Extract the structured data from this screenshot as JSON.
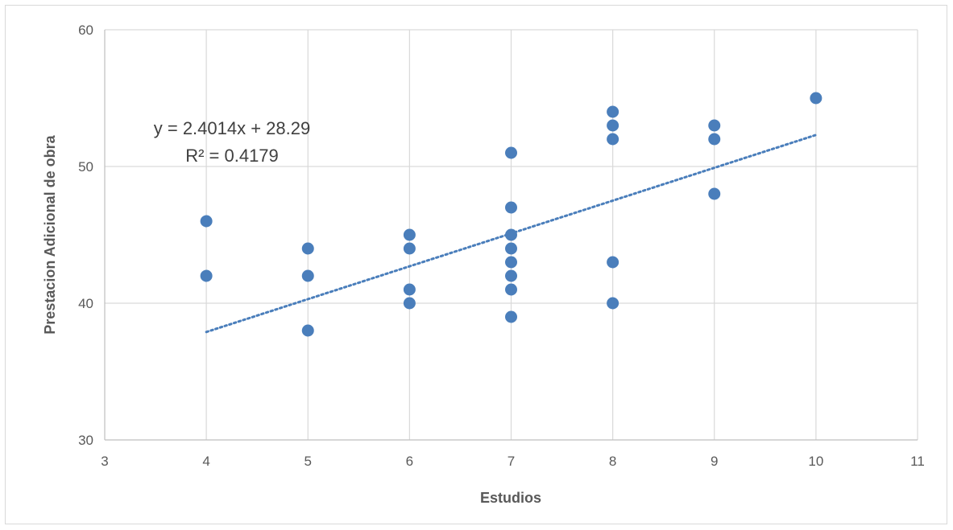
{
  "chart_data": {
    "type": "scatter",
    "xlabel": "Estudios",
    "ylabel": "Prestacion Adicional de obra",
    "xlim": [
      3,
      11
    ],
    "ylim": [
      30,
      60
    ],
    "x_ticks": [
      3,
      4,
      5,
      6,
      7,
      8,
      9,
      10,
      11
    ],
    "y_ticks": [
      30,
      40,
      50,
      60
    ],
    "grid": true,
    "points": [
      {
        "x": 4,
        "y": 46
      },
      {
        "x": 4,
        "y": 42
      },
      {
        "x": 5,
        "y": 44
      },
      {
        "x": 5,
        "y": 42
      },
      {
        "x": 5,
        "y": 38
      },
      {
        "x": 6,
        "y": 45
      },
      {
        "x": 6,
        "y": 44
      },
      {
        "x": 6,
        "y": 41
      },
      {
        "x": 6,
        "y": 40
      },
      {
        "x": 7,
        "y": 51
      },
      {
        "x": 7,
        "y": 47
      },
      {
        "x": 7,
        "y": 45
      },
      {
        "x": 7,
        "y": 44
      },
      {
        "x": 7,
        "y": 43
      },
      {
        "x": 7,
        "y": 42
      },
      {
        "x": 7,
        "y": 41
      },
      {
        "x": 7,
        "y": 39
      },
      {
        "x": 8,
        "y": 54
      },
      {
        "x": 8,
        "y": 53
      },
      {
        "x": 8,
        "y": 52
      },
      {
        "x": 8,
        "y": 43
      },
      {
        "x": 8,
        "y": 40
      },
      {
        "x": 9,
        "y": 53
      },
      {
        "x": 9,
        "y": 52
      },
      {
        "x": 9,
        "y": 48
      },
      {
        "x": 10,
        "y": 55
      }
    ],
    "trendline": {
      "type": "linear",
      "slope": 2.4014,
      "intercept": 28.29,
      "x_range": [
        4,
        10
      ],
      "equation_label": "y = 2.4014x + 28.29",
      "r2_label": "R² = 0.4179"
    },
    "colors": {
      "marker": "#4a7ebb",
      "trendline": "#4a7ebb",
      "grid": "#d9d9d9",
      "axis": "#bfbfbf"
    }
  }
}
